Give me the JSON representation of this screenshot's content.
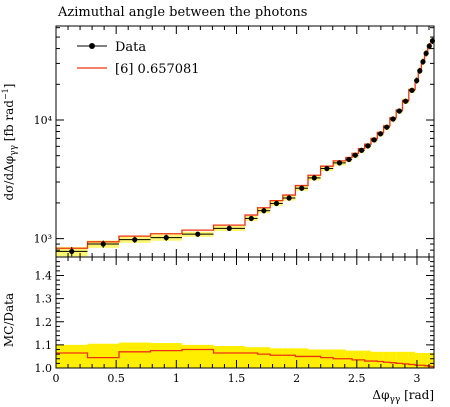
{
  "chart_data": {
    "type": "line",
    "title": "Azimuthal angle between the photons",
    "xlabel": "Δφ_γγ [rad]",
    "ylabel": "dσ/dΔφ_γγ [fb rad⁻¹]",
    "ratio_ylabel": "MC/Data",
    "main_yscale": "log",
    "xlim": [
      0,
      3.1416
    ],
    "main_ylim": [
      700,
      62000
    ],
    "ratio_ylim": [
      1.0,
      1.48
    ],
    "x_ticks": [
      "0",
      "0.5",
      "1",
      "1.5",
      "2",
      "2.5",
      "3"
    ],
    "x_tick_values": [
      0,
      0.5,
      1,
      1.5,
      2,
      2.5,
      3
    ],
    "main_y_tick_labels": [
      "10³",
      "10⁴"
    ],
    "main_y_tick_values": [
      1000,
      10000
    ],
    "ratio_y_ticks": [
      "1.0",
      "1.1",
      "1.2",
      "1.3",
      "1.4"
    ],
    "ratio_y_tick_values": [
      1.0,
      1.1,
      1.2,
      1.3,
      1.4
    ],
    "legend_position": "top-left",
    "legend": [
      {
        "name": "Data",
        "style": "black markers with error bars"
      },
      {
        "name": "[6] 0.657081",
        "style": "red line"
      }
    ],
    "colors": {
      "data": "#000000",
      "mc": "#ee3311",
      "band": "#ffee00"
    },
    "bin_edges": [
      0,
      0.2618,
      0.5236,
      0.7854,
      1.0472,
      1.309,
      1.5708,
      1.6755,
      1.7802,
      1.885,
      1.9897,
      2.0944,
      2.199,
      2.3038,
      2.4085,
      2.4609,
      2.5133,
      2.5656,
      2.618,
      2.6704,
      2.7227,
      2.7751,
      2.8274,
      2.8798,
      2.9322,
      2.9845,
      3.0107,
      3.0369,
      3.0631,
      3.0892,
      3.1154,
      3.1416
    ],
    "series": [
      {
        "name": "Data",
        "values": [
          780,
          900,
          980,
          1020,
          1090,
          1220,
          1480,
          1720,
          1980,
          2200,
          2660,
          3250,
          3900,
          4350,
          4650,
          5050,
          5550,
          6050,
          6800,
          7650,
          8700,
          10200,
          11900,
          14400,
          17800,
          21500,
          26000,
          31000,
          36500,
          42000,
          46500
        ],
        "errors_rel": [
          0.09,
          0.07,
          0.06,
          0.06,
          0.05,
          0.05,
          0.05,
          0.05,
          0.05,
          0.05,
          0.05,
          0.05,
          0.05,
          0.05,
          0.05,
          0.05,
          0.05,
          0.05,
          0.05,
          0.05,
          0.05,
          0.05,
          0.05,
          0.05,
          0.05,
          0.06,
          0.06,
          0.06,
          0.06,
          0.06,
          0.06
        ]
      },
      {
        "name": "[6] 0.657081",
        "values": [
          830,
          940,
          1050,
          1100,
          1180,
          1300,
          1580,
          1820,
          2090,
          2330,
          2800,
          3420,
          4080,
          4520,
          4830,
          5230,
          5740,
          6250,
          7000,
          7860,
          8920,
          10440,
          12150,
          14650,
          18080,
          21800,
          26300,
          31300,
          36800,
          42300,
          46800
        ]
      }
    ],
    "ratio": {
      "mc_over_data": [
        1.065,
        1.045,
        1.07,
        1.075,
        1.08,
        1.065,
        1.065,
        1.06,
        1.055,
        1.055,
        1.05,
        1.05,
        1.045,
        1.04,
        1.04,
        1.035,
        1.035,
        1.03,
        1.03,
        1.028,
        1.025,
        1.023,
        1.02,
        1.018,
        1.015,
        1.012,
        1.012,
        1.012,
        1.01,
        1.008,
        1.006
      ],
      "band_upper": [
        1.1,
        1.105,
        1.11,
        1.108,
        1.1,
        1.095,
        1.09,
        1.09,
        1.085,
        1.085,
        1.085,
        1.08,
        1.08,
        1.08,
        1.075,
        1.075,
        1.075,
        1.075,
        1.07,
        1.07,
        1.07,
        1.07,
        1.07,
        1.07,
        1.07,
        1.065,
        1.065,
        1.065,
        1.065,
        1.065,
        1.065
      ]
    }
  }
}
